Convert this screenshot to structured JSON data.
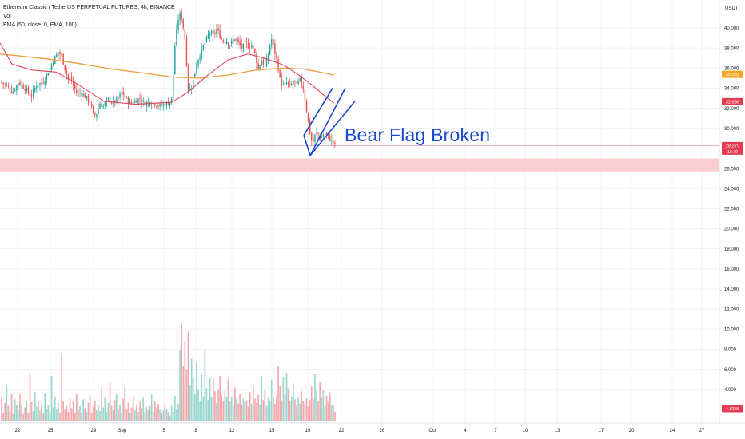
{
  "legend": {
    "symbol": "Ethereum Classic / TetherUS PERPETUAL FUTURES, 4h, BINANCE",
    "vol": "Vol",
    "ema": "EMA (50, close, 0, EMA, 100)"
  },
  "chart_data": {
    "type": "candlestick",
    "annotation": "Bear Flag Broken",
    "currency_label": "USDT",
    "y_axis": {
      "ticks": [
        "40.000",
        "38.000",
        "36.000",
        "34.000",
        "32.000",
        "30.000",
        "28.000",
        "26.000",
        "24.000",
        "22.000",
        "20.000",
        "18.000",
        "16.000",
        "14.000",
        "12.000",
        "10.000",
        "8.000",
        "6.000",
        "4.000"
      ],
      "range": [
        3.8,
        42.2
      ]
    },
    "x_axis": {
      "ticks": [
        "22",
        "25",
        "29",
        "Sep",
        "5",
        "8",
        "12",
        "15",
        "19",
        "22",
        "26",
        "Oct",
        "4",
        "7",
        "10",
        "13",
        "17",
        "20",
        "24",
        "27"
      ]
    },
    "price_badges": [
      {
        "label": "35.381",
        "value": 35.381,
        "color": "#f5a623"
      },
      {
        "label": "32.658",
        "value": 32.658,
        "color": "#e53b52"
      },
      {
        "label": "28.279",
        "value": 28.279,
        "sub": "16:79",
        "color": "#e53b52"
      },
      {
        "label": "4.8136",
        "value": 4.3,
        "color": "#e53b52"
      }
    ],
    "support_zone": {
      "low": 25.7,
      "high": 27.0,
      "color": "#f9c5c9"
    },
    "current_price": 28.279,
    "ema_50": [
      [
        0,
        38.5
      ],
      [
        15,
        36.4
      ],
      [
        40,
        35.8
      ],
      [
        70,
        35.6
      ],
      [
        95,
        34.5
      ],
      [
        130,
        32.7
      ],
      [
        170,
        32.4
      ],
      [
        215,
        32.6
      ],
      [
        235,
        33.6
      ],
      [
        260,
        35.3
      ],
      [
        285,
        36.8
      ],
      [
        310,
        37.4
      ],
      [
        330,
        37.0
      ],
      [
        355,
        36.3
      ],
      [
        372,
        35.4
      ],
      [
        392,
        34.2
      ],
      [
        405,
        33.3
      ],
      [
        418,
        32.5
      ]
    ],
    "ema_100": [
      [
        0,
        37.4
      ],
      [
        25,
        37.2
      ],
      [
        60,
        36.9
      ],
      [
        95,
        36.5
      ],
      [
        140,
        35.9
      ],
      [
        180,
        35.5
      ],
      [
        215,
        35.1
      ],
      [
        250,
        35.0
      ],
      [
        285,
        35.3
      ],
      [
        320,
        35.8
      ],
      [
        355,
        36.0
      ],
      [
        380,
        35.9
      ],
      [
        400,
        35.6
      ],
      [
        418,
        35.3
      ]
    ],
    "flag_lines": [
      [
        [
          380,
          29.3
        ],
        [
          388,
          27.3
        ],
        [
          432,
          34.0
        ]
      ],
      [
        [
          380,
          29.3
        ],
        [
          416,
          34.0
        ]
      ],
      [
        [
          388,
          27.3
        ],
        [
          444,
          32.7
        ]
      ]
    ],
    "close_path": [
      [
        0,
        34.6
      ],
      [
        8,
        34.2
      ],
      [
        15,
        33.6
      ],
      [
        22,
        34.6
      ],
      [
        30,
        34.0
      ],
      [
        38,
        33.2
      ],
      [
        45,
        34.4
      ],
      [
        52,
        34.5
      ],
      [
        58,
        35.4
      ],
      [
        62,
        36.1
      ],
      [
        66,
        36.8
      ],
      [
        72,
        37.6
      ],
      [
        76,
        37.2
      ],
      [
        80,
        36.0
      ],
      [
        84,
        35.0
      ],
      [
        88,
        34.8
      ],
      [
        92,
        34.0
      ],
      [
        96,
        33.4
      ],
      [
        100,
        33.6
      ],
      [
        106,
        33.1
      ],
      [
        112,
        32.6
      ],
      [
        116,
        31.2
      ],
      [
        120,
        31.5
      ],
      [
        124,
        32.5
      ],
      [
        128,
        32.2
      ],
      [
        134,
        32.9
      ],
      [
        140,
        32.5
      ],
      [
        146,
        32.9
      ],
      [
        152,
        33.6
      ],
      [
        158,
        32.8
      ],
      [
        162,
        32.5
      ],
      [
        168,
        32.7
      ],
      [
        174,
        33.0
      ],
      [
        180,
        32.5
      ],
      [
        186,
        32.6
      ],
      [
        192,
        32.5
      ],
      [
        198,
        32.2
      ],
      [
        204,
        32.4
      ],
      [
        210,
        32.5
      ],
      [
        214,
        33.0
      ],
      [
        218,
        38.5
      ],
      [
        222,
        40.9
      ],
      [
        225,
        41.5
      ],
      [
        228,
        40.2
      ],
      [
        231,
        38.6
      ],
      [
        234,
        34.0
      ],
      [
        238,
        33.9
      ],
      [
        242,
        35.2
      ],
      [
        246,
        36.8
      ],
      [
        250,
        37.5
      ],
      [
        254,
        38.3
      ],
      [
        258,
        39.0
      ],
      [
        262,
        39.6
      ],
      [
        266,
        39.3
      ],
      [
        270,
        39.9
      ],
      [
        274,
        39.2
      ],
      [
        278,
        38.6
      ],
      [
        282,
        38.8
      ],
      [
        286,
        38.3
      ],
      [
        290,
        38.8
      ],
      [
        294,
        38.9
      ],
      [
        298,
        38.4
      ],
      [
        302,
        38.0
      ],
      [
        306,
        38.6
      ],
      [
        310,
        38.1
      ],
      [
        314,
        38.3
      ],
      [
        318,
        37.4
      ],
      [
        322,
        35.9
      ],
      [
        326,
        36.8
      ],
      [
        330,
        36.1
      ],
      [
        334,
        37.0
      ],
      [
        338,
        39.1
      ],
      [
        342,
        37.8
      ],
      [
        346,
        36.5
      ],
      [
        350,
        34.5
      ],
      [
        354,
        34.2
      ],
      [
        358,
        34.6
      ],
      [
        362,
        34.1
      ],
      [
        366,
        34.7
      ],
      [
        370,
        34.3
      ],
      [
        374,
        34.8
      ],
      [
        378,
        34.1
      ],
      [
        382,
        32.1
      ],
      [
        386,
        29.8
      ],
      [
        390,
        28.4
      ],
      [
        393,
        29.3
      ],
      [
        396,
        29.6
      ],
      [
        400,
        28.9
      ],
      [
        404,
        29.5
      ],
      [
        408,
        29.3
      ],
      [
        412,
        28.9
      ],
      [
        416,
        28.5
      ],
      [
        419,
        28.3
      ]
    ],
    "volume": [
      3.2,
      1.1,
      2.4,
      4.8,
      2.0,
      1.2,
      3.7,
      0.9,
      2.9,
      2.1,
      1.4,
      3.6,
      2.2,
      0.9,
      1.8,
      2.6,
      1.0,
      6.4,
      2.5,
      1.3,
      3.9,
      1.9,
      2.7,
      1.4,
      2.2,
      1.0,
      3.8,
      1.6,
      2.1,
      1.2,
      6.1,
      1.8,
      3.3,
      1.5,
      2.4,
      1.1,
      9.0,
      2.6,
      1.5,
      2.0,
      1.2,
      3.0,
      1.7,
      2.7,
      1.1,
      3.6,
      1.4,
      2.0,
      1.0,
      2.9,
      1.7,
      1.2,
      2.4,
      3.5,
      1.0,
      1.9,
      2.6,
      1.4,
      2.1,
      1.3,
      4.4,
      1.8,
      3.1,
      1.2,
      2.4,
      5.1,
      2.0,
      1.4,
      2.8,
      3.7,
      1.6,
      2.2,
      1.1,
      3.0,
      4.6,
      1.6,
      2.4,
      1.0,
      1.8,
      3.3,
      1.4,
      2.1,
      1.2,
      2.6,
      1.7,
      3.1,
      1.1,
      1.9,
      1.4,
      2.0,
      3.6,
      1.2,
      2.6,
      1.8,
      2.3,
      1.5,
      1.0,
      1.4,
      2.2,
      1.6,
      1.2,
      0.7,
      2.0,
      1.2,
      3.4,
      1.6,
      2.3,
      9.6,
      13.3,
      7.4,
      10.8,
      7.0,
      12.1,
      4.9,
      8.4,
      5.9,
      3.6,
      8.0,
      4.3,
      2.6,
      6.3,
      3.3,
      9.6,
      4.4,
      2.8,
      5.9,
      3.2,
      5.6,
      4.0,
      2.4,
      4.3,
      6.1,
      3.5,
      2.6,
      4.1,
      3.2,
      5.7,
      2.7,
      3.3,
      2.0,
      4.5,
      3.0,
      2.3,
      3.6,
      2.1,
      3.0,
      2.5,
      2.8,
      1.9,
      3.9,
      2.3,
      4.6,
      3.0,
      2.4,
      3.5,
      2.2,
      6.1,
      2.8,
      4.2,
      2.0,
      3.1,
      2.6,
      5.6,
      3.1,
      2.3,
      3.4,
      7.5,
      4.8,
      2.6,
      6.0,
      3.7,
      6.5,
      4.4,
      2.7,
      3.3,
      5.1,
      2.9,
      2.0,
      3.1,
      2.3,
      4.0,
      2.6,
      2.2,
      3.0,
      1.9,
      2.8,
      4.7,
      3.0,
      6.3,
      4.1,
      2.6,
      5.3,
      3.1,
      4.2,
      2.0,
      3.4,
      2.5,
      3.8,
      2.2,
      2.0,
      1.2
    ]
  }
}
